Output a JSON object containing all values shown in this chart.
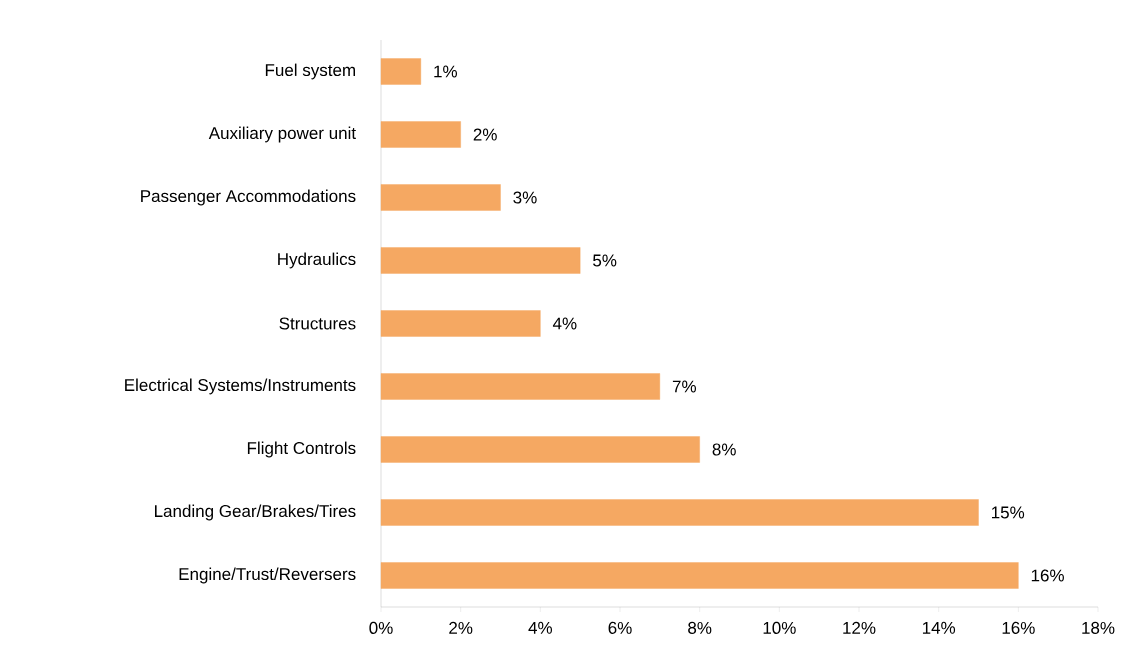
{
  "chart_data": {
    "type": "bar",
    "orientation": "horizontal",
    "categories": [
      "Fuel system",
      "Auxiliary power unit",
      "Passenger Accommodations",
      "Hydraulics",
      "Structures",
      "Electrical Systems/Instruments",
      "Flight Controls",
      "Landing Gear/Brakes/Tires",
      "Engine/Trust/Reversers"
    ],
    "values": [
      1,
      2,
      3,
      5,
      4,
      7,
      8,
      15,
      16
    ],
    "value_labels": [
      "1%",
      "2%",
      "3%",
      "5%",
      "4%",
      "7%",
      "8%",
      "15%",
      "16%"
    ],
    "color": "#f5a862",
    "xlim": [
      0,
      18
    ],
    "xticks": [
      {
        "value": 0,
        "label": "0%"
      },
      {
        "value": 2,
        "label": "2%"
      },
      {
        "value": 4,
        "label": "4%"
      },
      {
        "value": 6,
        "label": "6%"
      },
      {
        "value": 8,
        "label": "8%"
      },
      {
        "value": 10,
        "label": "10%"
      },
      {
        "value": 12,
        "label": "12%"
      },
      {
        "value": 14,
        "label": "14%"
      },
      {
        "value": 16,
        "label": "16%"
      },
      {
        "value": 18,
        "label": "18%"
      }
    ],
    "grid": false
  }
}
